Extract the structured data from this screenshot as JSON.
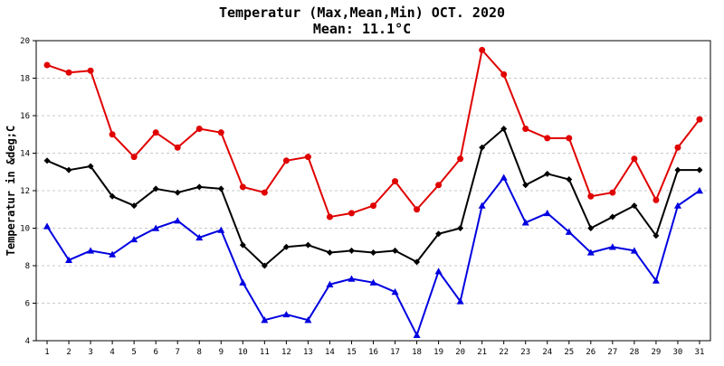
{
  "chart_data": {
    "type": "line",
    "title": "Temperatur (Max,Mean,Min) OCT. 2020",
    "subtitle": "Mean: 11.1°C",
    "xlabel": "",
    "ylabel": "Temperatur in &deg;C",
    "categories": [
      "1",
      "2",
      "3",
      "4",
      "5",
      "6",
      "7",
      "8",
      "9",
      "10",
      "11",
      "12",
      "13",
      "14",
      "15",
      "16",
      "17",
      "18",
      "19",
      "20",
      "21",
      "22",
      "23",
      "24",
      "25",
      "26",
      "27",
      "28",
      "29",
      "30",
      "31"
    ],
    "ylim": [
      4,
      20
    ],
    "yticks": [
      4,
      6,
      8,
      10,
      12,
      14,
      16,
      18,
      20
    ],
    "grid": true,
    "series": [
      {
        "color": "#e00000",
        "marker": "circle",
        "values": [
          18.7,
          18.3,
          18.4,
          15.0,
          13.8,
          15.1,
          14.3,
          15.3,
          15.1,
          12.2,
          11.9,
          13.6,
          13.8,
          10.6,
          10.8,
          11.2,
          12.5,
          11.0,
          12.3,
          13.7,
          19.5,
          18.2,
          15.3,
          14.8,
          14.8,
          11.7,
          11.9,
          13.7,
          11.5,
          14.3,
          15.8
        ]
      },
      {
        "color": "#000000",
        "marker": "diamond",
        "values": [
          13.6,
          13.1,
          13.3,
          11.7,
          11.2,
          12.1,
          11.9,
          12.2,
          12.1,
          9.1,
          8.0,
          9.0,
          9.1,
          8.7,
          8.8,
          8.7,
          8.8,
          8.2,
          9.7,
          10.0,
          14.3,
          15.3,
          12.3,
          12.9,
          12.6,
          10.0,
          10.6,
          11.2,
          9.6,
          13.1,
          13.1
        ]
      },
      {
        "color": "#0000e0",
        "marker": "triangle",
        "values": [
          10.1,
          8.3,
          8.8,
          8.6,
          9.4,
          10.0,
          10.4,
          9.5,
          9.9,
          7.1,
          5.1,
          5.4,
          5.1,
          7.0,
          7.3,
          7.1,
          6.6,
          4.3,
          7.7,
          6.1,
          11.2,
          12.7,
          10.3,
          10.8,
          9.8,
          8.7,
          9.0,
          8.8,
          7.2,
          11.2,
          12.0
        ]
      }
    ]
  }
}
